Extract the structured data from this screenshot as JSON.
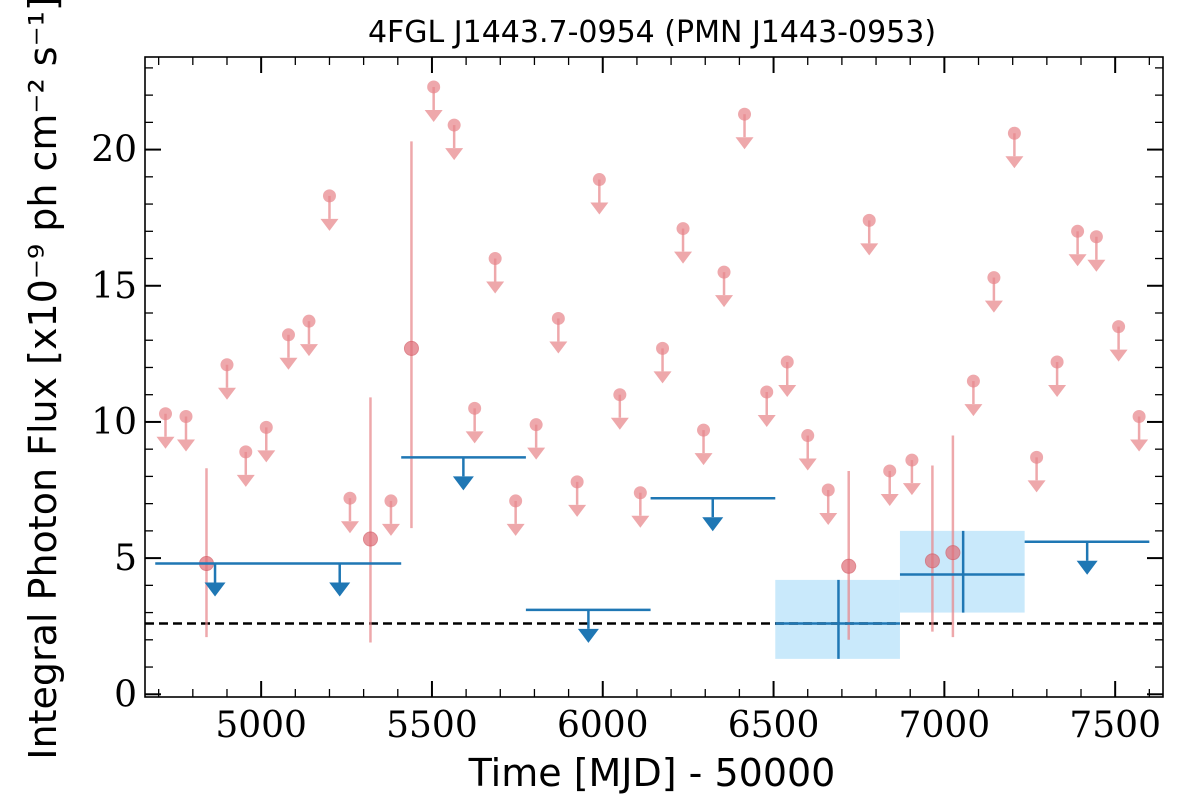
{
  "chart_data": {
    "type": "scatter",
    "title": "4FGL J1443.7-0954 (PMN J1443-0953)",
    "xlabel": "Time [MJD] - 50000",
    "ylabel": "Integral Photon Flux [x10⁻⁹ ph cm⁻² s⁻¹]",
    "xlim": [
      4660,
      7640
    ],
    "ylim": [
      -0.1,
      23.4
    ],
    "xticks": [
      "5000",
      "5500",
      "6000",
      "6500",
      "7000",
      "7500"
    ],
    "yticks": [
      "0",
      "5",
      "10",
      "15",
      "20"
    ],
    "mean_flux": 2.6,
    "colors": {
      "fine": "#e8878c",
      "coarse": "#1f77b4",
      "band": "#c9e9fb",
      "mean_line": "#000000"
    },
    "fine_bins": {
      "upper_limits": [
        {
          "x": 4720,
          "y": 10.3
        },
        {
          "x": 4780,
          "y": 10.2
        },
        {
          "x": 4900,
          "y": 12.1
        },
        {
          "x": 4955,
          "y": 8.9
        },
        {
          "x": 5015,
          "y": 9.8
        },
        {
          "x": 5080,
          "y": 13.2
        },
        {
          "x": 5140,
          "y": 13.7
        },
        {
          "x": 5200,
          "y": 18.3
        },
        {
          "x": 5260,
          "y": 7.2
        },
        {
          "x": 5380,
          "y": 7.1
        },
        {
          "x": 5505,
          "y": 22.3
        },
        {
          "x": 5565,
          "y": 20.9
        },
        {
          "x": 5625,
          "y": 10.5
        },
        {
          "x": 5685,
          "y": 16.0
        },
        {
          "x": 5745,
          "y": 7.1
        },
        {
          "x": 5805,
          "y": 9.9
        },
        {
          "x": 5870,
          "y": 13.8
        },
        {
          "x": 5925,
          "y": 7.8
        },
        {
          "x": 5990,
          "y": 18.9
        },
        {
          "x": 6050,
          "y": 11.0
        },
        {
          "x": 6110,
          "y": 7.4
        },
        {
          "x": 6175,
          "y": 12.7
        },
        {
          "x": 6235,
          "y": 17.1
        },
        {
          "x": 6295,
          "y": 9.7
        },
        {
          "x": 6355,
          "y": 15.5
        },
        {
          "x": 6415,
          "y": 21.3
        },
        {
          "x": 6480,
          "y": 11.1
        },
        {
          "x": 6540,
          "y": 12.2
        },
        {
          "x": 6600,
          "y": 9.5
        },
        {
          "x": 6660,
          "y": 7.5
        },
        {
          "x": 6780,
          "y": 17.4
        },
        {
          "x": 6840,
          "y": 8.2
        },
        {
          "x": 6905,
          "y": 8.6
        },
        {
          "x": 7085,
          "y": 11.5
        },
        {
          "x": 7145,
          "y": 15.3
        },
        {
          "x": 7205,
          "y": 20.6
        },
        {
          "x": 7270,
          "y": 8.7
        },
        {
          "x": 7330,
          "y": 12.2
        },
        {
          "x": 7390,
          "y": 17.0
        },
        {
          "x": 7445,
          "y": 16.8
        },
        {
          "x": 7510,
          "y": 13.5
        },
        {
          "x": 7570,
          "y": 10.2
        }
      ],
      "detections": [
        {
          "x": 4840,
          "y": 4.8,
          "ylo": 2.1,
          "yhi": 8.3
        },
        {
          "x": 5320,
          "y": 5.7,
          "ylo": 1.9,
          "yhi": 10.9
        },
        {
          "x": 5440,
          "y": 12.7,
          "ylo": 6.1,
          "yhi": 20.3
        },
        {
          "x": 6720,
          "y": 4.7,
          "ylo": 2.0,
          "yhi": 8.2
        },
        {
          "x": 6965,
          "y": 4.9,
          "ylo": 2.3,
          "yhi": 8.4
        },
        {
          "x": 7025,
          "y": 5.2,
          "ylo": 2.1,
          "yhi": 9.5
        }
      ]
    },
    "coarse_bins": {
      "upper_limits": [
        {
          "x0": 4690,
          "x1": 5410,
          "y": 4.8,
          "arrows_x": [
            4865,
            5230
          ]
        },
        {
          "x0": 5410,
          "x1": 5775,
          "y": 8.7,
          "arrows_x": [
            5592
          ]
        },
        {
          "x0": 5775,
          "x1": 6140,
          "y": 3.1,
          "arrows_x": [
            5958
          ]
        },
        {
          "x0": 6140,
          "x1": 6505,
          "y": 7.2,
          "arrows_x": [
            6322
          ]
        },
        {
          "x0": 7235,
          "x1": 7600,
          "y": 5.6,
          "arrows_x": [
            7418
          ]
        }
      ],
      "detections": [
        {
          "x0": 6505,
          "x1": 6870,
          "x": 6690,
          "y": 2.6,
          "ylo": 1.3,
          "yhi": 4.2
        },
        {
          "x0": 6870,
          "x1": 7235,
          "x": 7055,
          "y": 4.4,
          "ylo": 3.0,
          "yhi": 6.0
        }
      ]
    }
  }
}
